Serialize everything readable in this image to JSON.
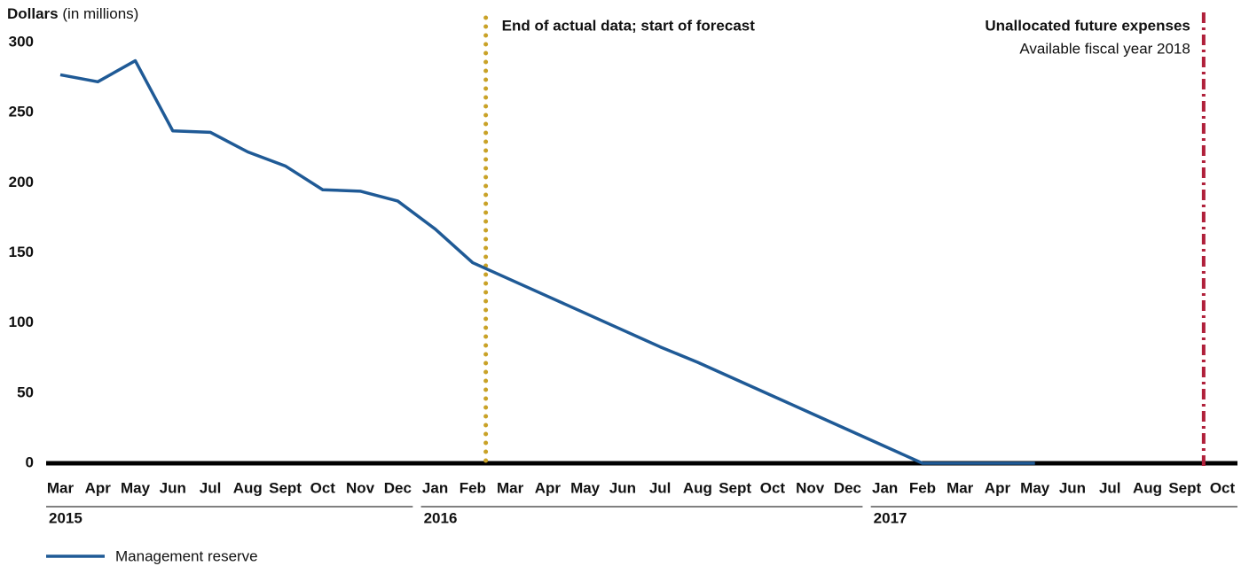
{
  "chart_data": {
    "type": "line",
    "y_label": "Dollars",
    "y_label_unit": "(in millions)",
    "categories": [
      "Mar",
      "Apr",
      "May",
      "Jun",
      "Jul",
      "Aug",
      "Sept",
      "Oct",
      "Nov",
      "Dec",
      "Jan",
      "Feb",
      "Mar",
      "Apr",
      "May",
      "Jun",
      "Jul",
      "Aug",
      "Sept",
      "Oct",
      "Nov",
      "Dec",
      "Jan",
      "Feb",
      "Mar",
      "Apr",
      "May",
      "Jun",
      "Jul",
      "Aug",
      "Sept",
      "Oct"
    ],
    "year_labels": [
      "2015",
      "2016",
      "2017"
    ],
    "series": [
      {
        "name": "Management reserve",
        "color": "#1f5a96",
        "values": [
          277,
          272,
          287,
          237,
          236,
          222,
          212,
          195,
          194,
          187,
          167,
          143,
          131,
          119,
          107,
          95,
          83,
          72,
          60,
          48,
          36,
          24,
          12,
          0,
          0,
          0,
          0,
          null,
          null,
          null,
          null,
          null
        ]
      }
    ],
    "ylim": [
      0,
      300
    ],
    "yticks": [
      0,
      50,
      100,
      150,
      200,
      250,
      300
    ],
    "grid": false,
    "annotations": [
      {
        "text": "End of actual data; start of forecast",
        "color": "#c9a227"
      },
      {
        "text": "Unallocated future expenses",
        "subtext": "Available fiscal year 2018",
        "color": "#b0203a"
      }
    ]
  }
}
